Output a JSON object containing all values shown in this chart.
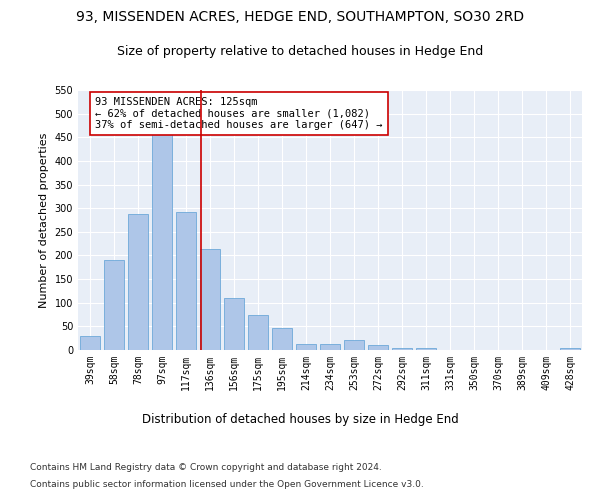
{
  "title1": "93, MISSENDEN ACRES, HEDGE END, SOUTHAMPTON, SO30 2RD",
  "title2": "Size of property relative to detached houses in Hedge End",
  "xlabel": "Distribution of detached houses by size in Hedge End",
  "ylabel": "Number of detached properties",
  "categories": [
    "39sqm",
    "58sqm",
    "78sqm",
    "97sqm",
    "117sqm",
    "136sqm",
    "156sqm",
    "175sqm",
    "195sqm",
    "214sqm",
    "234sqm",
    "253sqm",
    "272sqm",
    "292sqm",
    "311sqm",
    "331sqm",
    "350sqm",
    "370sqm",
    "389sqm",
    "409sqm",
    "428sqm"
  ],
  "values": [
    30,
    190,
    288,
    460,
    292,
    213,
    109,
    74,
    47,
    13,
    13,
    21,
    10,
    5,
    5,
    0,
    0,
    0,
    0,
    0,
    5
  ],
  "bar_color": "#aec6e8",
  "bar_edge_color": "#5a9fd4",
  "vline_x_index": 4.62,
  "vline_color": "#cc0000",
  "annotation_text": "93 MISSENDEN ACRES: 125sqm\n← 62% of detached houses are smaller (1,082)\n37% of semi-detached houses are larger (647) →",
  "annotation_box_color": "#ffffff",
  "annotation_box_edge": "#cc0000",
  "ylim": [
    0,
    550
  ],
  "yticks": [
    0,
    50,
    100,
    150,
    200,
    250,
    300,
    350,
    400,
    450,
    500,
    550
  ],
  "footnote1": "Contains HM Land Registry data © Crown copyright and database right 2024.",
  "footnote2": "Contains public sector information licensed under the Open Government Licence v3.0.",
  "bg_color": "#e8eef7",
  "fig_bg": "#ffffff",
  "title1_fontsize": 10,
  "title2_fontsize": 9,
  "xlabel_fontsize": 8.5,
  "ylabel_fontsize": 8,
  "tick_fontsize": 7,
  "annotation_fontsize": 7.5,
  "footnote_fontsize": 6.5
}
